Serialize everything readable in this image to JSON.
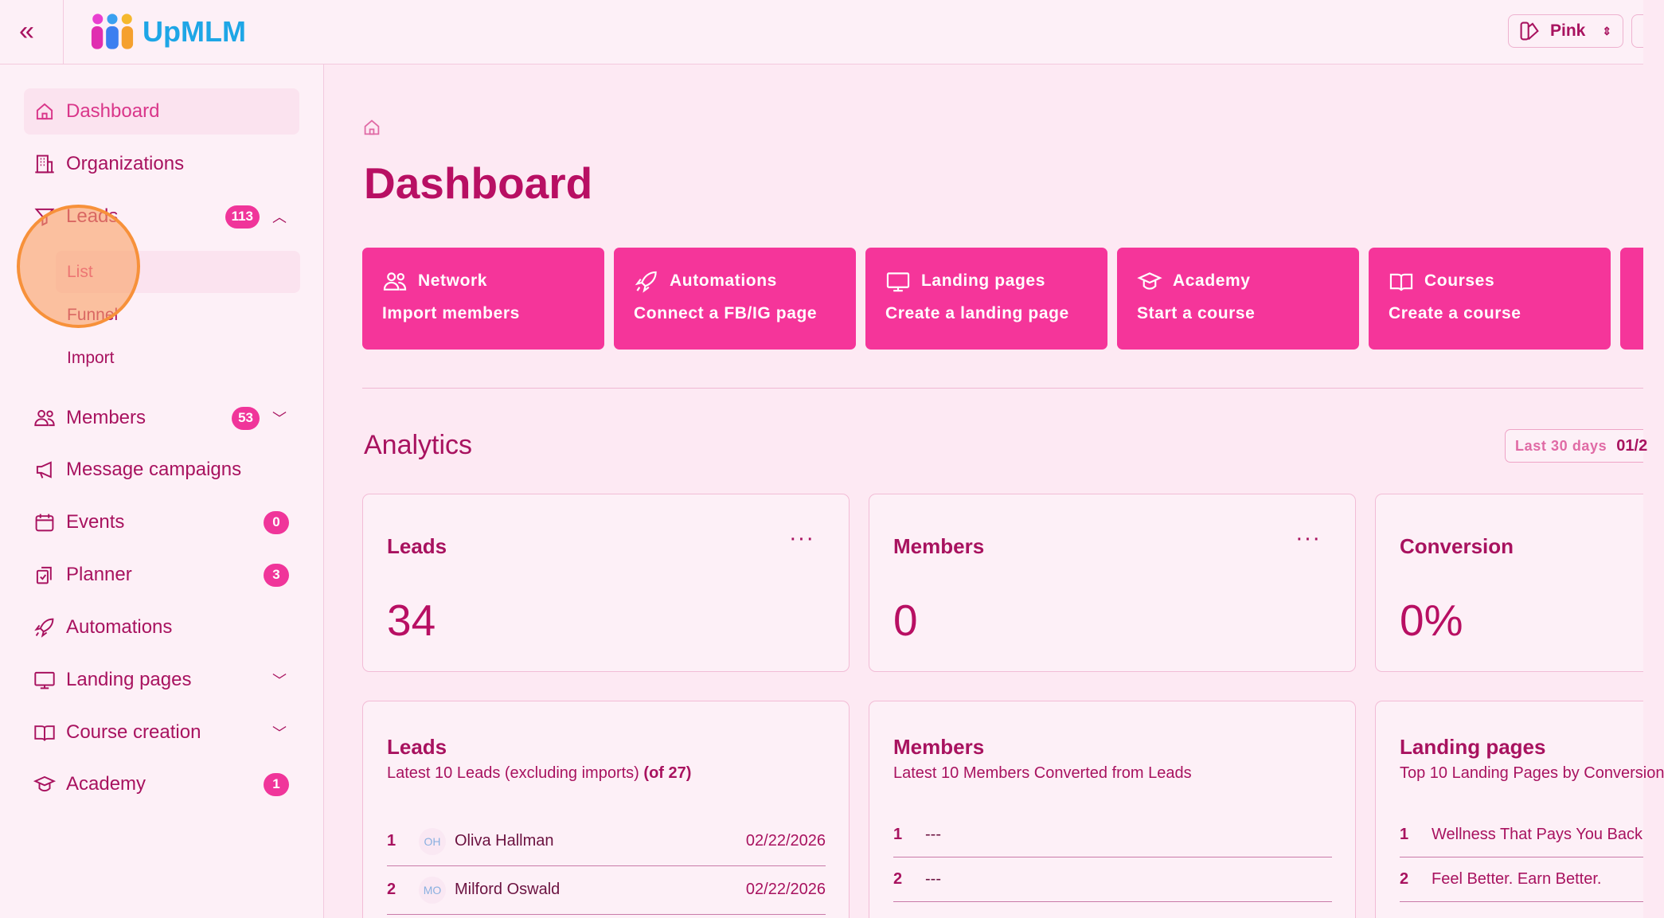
{
  "app": {
    "logo_text": "UpMLM",
    "theme_label": "Pink"
  },
  "sidebar": {
    "items": [
      {
        "label": "Dashboard",
        "icon": "home-icon"
      },
      {
        "label": "Organizations",
        "icon": "building-icon"
      },
      {
        "label": "Leads",
        "icon": "funnel-icon",
        "badge": "113",
        "expanded": true
      },
      {
        "label": "Members",
        "icon": "users-icon",
        "badge": "53"
      },
      {
        "label": "Message campaigns",
        "icon": "megaphone-icon"
      },
      {
        "label": "Events",
        "icon": "calendar-icon",
        "badge": "0"
      },
      {
        "label": "Planner",
        "icon": "clipboard-check-icon",
        "badge": "3"
      },
      {
        "label": "Automations",
        "icon": "rocket-icon"
      },
      {
        "label": "Landing pages",
        "icon": "monitor-icon"
      },
      {
        "label": "Course creation",
        "icon": "book-icon"
      },
      {
        "label": "Academy",
        "icon": "graduation-cap-icon",
        "badge": "1"
      }
    ],
    "leads_sub": [
      "List",
      "Funnel",
      "Import"
    ]
  },
  "main": {
    "title": "Dashboard",
    "tiles": [
      {
        "title": "Network",
        "action": "Import members",
        "icon": "users-icon"
      },
      {
        "title": "Automations",
        "action": "Connect a FB/IG page",
        "icon": "rocket-icon"
      },
      {
        "title": "Landing pages",
        "action": "Create a landing page",
        "icon": "monitor-icon"
      },
      {
        "title": "Academy",
        "action": "Start a course",
        "icon": "graduation-cap-icon"
      },
      {
        "title": "Courses",
        "action": "Create a course",
        "icon": "book-icon"
      }
    ],
    "analytics": {
      "title": "Analytics",
      "range_label": "Last 30 days",
      "range_value": "01/2",
      "stats": [
        {
          "title": "Leads",
          "value": "34"
        },
        {
          "title": "Members",
          "value": "0"
        },
        {
          "title": "Conversion",
          "value": "0%"
        }
      ],
      "lists": [
        {
          "title": "Leads",
          "subtitle": "Latest 10 Leads (excluding imports)",
          "subtitle_bold": "(of 27)",
          "rows": [
            {
              "n": "1",
              "initials": "OH",
              "name": "Oliva Hallman",
              "date": "02/22/2026"
            },
            {
              "n": "2",
              "initials": "MO",
              "name": "Milford Oswald",
              "date": "02/22/2026"
            }
          ]
        },
        {
          "title": "Members",
          "subtitle": "Latest 10 Members Converted from Leads",
          "rows": [
            {
              "n": "1",
              "name": "---"
            },
            {
              "n": "2",
              "name": "---"
            }
          ]
        },
        {
          "title": "Landing pages",
          "subtitle": "Top 10 Landing Pages by Conversion",
          "rows": [
            {
              "n": "1",
              "name": "Wellness That Pays You Back"
            },
            {
              "n": "2",
              "name": "Feel Better. Earn Better."
            }
          ]
        }
      ]
    }
  },
  "colors": {
    "accent": "#f5359a",
    "text": "#a8125f",
    "background": "#fde9f3"
  }
}
